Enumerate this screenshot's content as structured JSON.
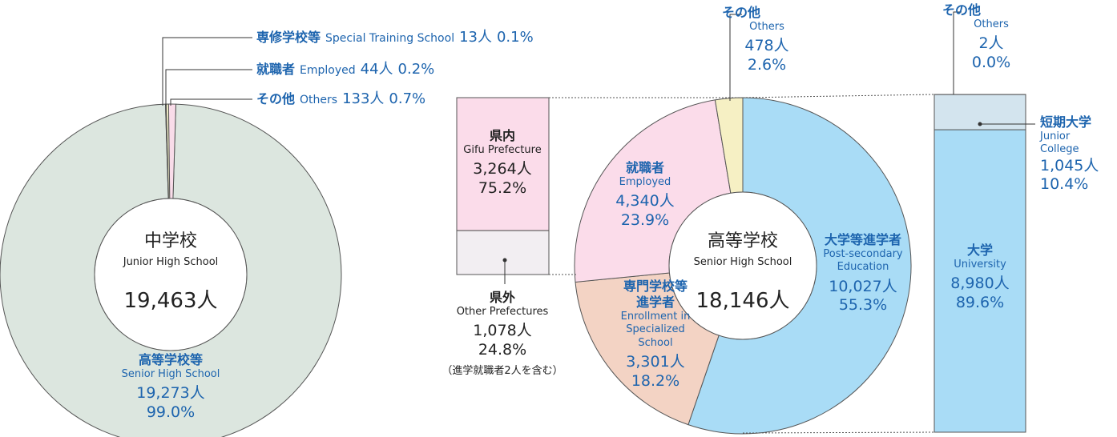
{
  "chart_data": [
    {
      "type": "donut",
      "center_label": "中学校",
      "center_label_en": "Junior High School",
      "total_label": "19,463人",
      "categories": [
        "高等学校等",
        "専修学校等",
        "就職者",
        "その他"
      ],
      "categories_en": [
        "Senior High School",
        "Special Training School",
        "Employed",
        "Others"
      ],
      "values": [
        19273,
        13,
        44,
        133
      ],
      "value_labels": [
        "19,273人",
        "13人",
        "44人",
        "133人"
      ],
      "percent_labels": [
        "99.0%",
        "0.1%",
        "0.2%",
        "0.7%"
      ],
      "colors": [
        "#dce6df",
        "#e6eee3",
        "#f4f0c8",
        "#f9dce9"
      ]
    },
    {
      "type": "stacked_bar",
      "categories": [
        "県内",
        "県外"
      ],
      "categories_en": [
        "Gifu Prefecture",
        "Other Prefectures"
      ],
      "values": [
        3264,
        1078
      ],
      "value_labels": [
        "3,264人",
        "1,078人"
      ],
      "percent_labels": [
        "75.2%",
        "24.8%"
      ],
      "colors": [
        "#fbdcea",
        "#f2eef2"
      ],
      "note": "（進学就職者2人を含む）"
    },
    {
      "type": "donut",
      "center_label": "高等学校",
      "center_label_en": "Senior High School",
      "total_label": "18,146人",
      "categories": [
        "大学等進学者",
        "専門学校等進学者",
        "就職者",
        "その他"
      ],
      "categories_en": [
        "Post-secondary Education",
        "Enrollment in Specialized School",
        "Employed",
        "Others"
      ],
      "values": [
        10027,
        3301,
        4340,
        478
      ],
      "value_labels": [
        "10,027人",
        "3,301人",
        "4,340人",
        "478人"
      ],
      "percent_labels": [
        "55.3%",
        "18.2%",
        "23.9%",
        "2.6%"
      ],
      "colors": [
        "#a9dcf6",
        "#f3d3c4",
        "#fbdcea",
        "#f6f0c4"
      ]
    },
    {
      "type": "stacked_bar",
      "categories": [
        "大学",
        "短期大学",
        "その他"
      ],
      "categories_en": [
        "University",
        "Junior College",
        "Others"
      ],
      "values": [
        8980,
        1045,
        2
      ],
      "value_labels": [
        "8,980人",
        "1,045人",
        "2人"
      ],
      "percent_labels": [
        "89.6%",
        "10.4%",
        "0.0%"
      ],
      "colors": [
        "#a9dcf6",
        "#d3e4ee",
        "#eef4f8"
      ]
    }
  ]
}
